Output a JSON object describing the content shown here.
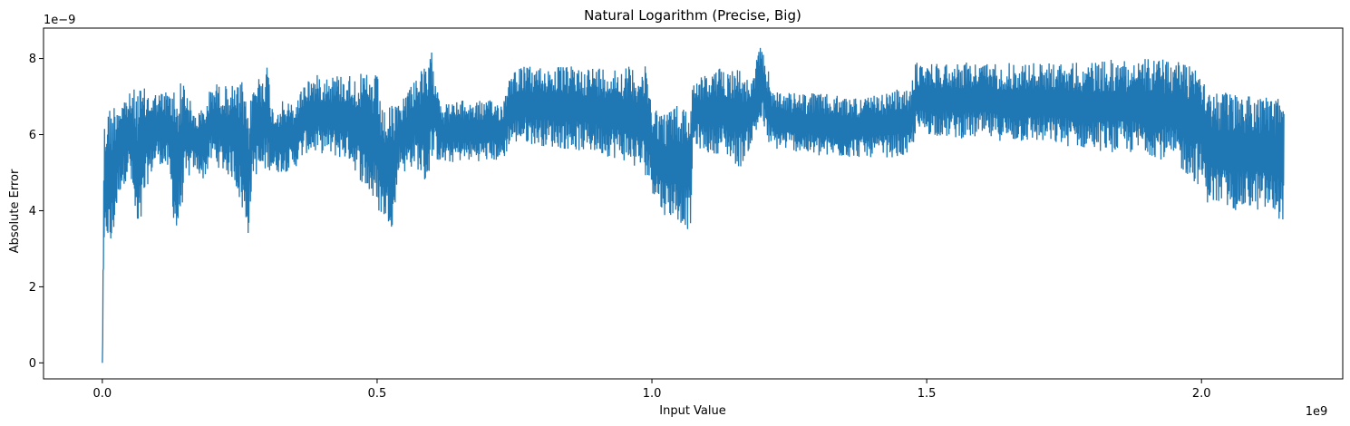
{
  "chart_data": {
    "type": "line",
    "title": "Natural Logarithm (Precise, Big)",
    "xlabel": "Input Value",
    "ylabel": "Absolute Error",
    "x_offset_label": "1e9",
    "y_offset_label": "1e−9",
    "xlim": [
      -0.107,
      2.257
    ],
    "ylim": [
      -0.42,
      8.8
    ],
    "x_ticks": [
      0.0,
      0.5,
      1.0,
      1.5,
      2.0
    ],
    "x_tick_labels": [
      "0.0",
      "0.5",
      "1.0",
      "1.5",
      "2.0"
    ],
    "y_ticks": [
      0,
      2,
      4,
      6,
      8
    ],
    "y_tick_labels": [
      "0",
      "2",
      "4",
      "6",
      "8"
    ],
    "grid": false,
    "legend": "none",
    "series_color": "#1f77b4",
    "series": [
      {
        "x": [
          0.0,
          0.003,
          0.008,
          0.015,
          0.03,
          0.05,
          0.065,
          0.08,
          0.1,
          0.12,
          0.135,
          0.15,
          0.165,
          0.185,
          0.2,
          0.22,
          0.24,
          0.255,
          0.265,
          0.275,
          0.29,
          0.3,
          0.31,
          0.33,
          0.35,
          0.37,
          0.4,
          0.45,
          0.5,
          0.51,
          0.52,
          0.53,
          0.54,
          0.55,
          0.57,
          0.59,
          0.6,
          0.62,
          0.65,
          0.7,
          0.73,
          0.74,
          0.76,
          0.8,
          0.85,
          0.9,
          0.95,
          0.99,
          1.0,
          1.02,
          1.04,
          1.06,
          1.07,
          1.075,
          1.08,
          1.1,
          1.13,
          1.16,
          1.18,
          1.19,
          1.2,
          1.21,
          1.22,
          1.25,
          1.3,
          1.35,
          1.4,
          1.45,
          1.47,
          1.48,
          1.5,
          1.55,
          1.6,
          1.65,
          1.7,
          1.75,
          1.8,
          1.85,
          1.9,
          1.95,
          2.0,
          2.01,
          2.02,
          2.05,
          2.08,
          2.1,
          2.13,
          2.15
        ],
        "upper": [
          0.0,
          6.3,
          6.7,
          6.8,
          7.0,
          7.1,
          7.3,
          7.2,
          7.1,
          7.2,
          7.3,
          7.5,
          6.6,
          6.7,
          7.4,
          7.3,
          7.3,
          7.4,
          6.5,
          7.4,
          7.7,
          7.9,
          6.7,
          6.9,
          6.8,
          7.5,
          7.6,
          7.6,
          7.6,
          6.6,
          6.7,
          6.8,
          6.8,
          7.1,
          7.6,
          7.8,
          8.2,
          6.8,
          6.9,
          6.9,
          6.9,
          7.7,
          7.8,
          7.8,
          7.8,
          7.8,
          7.8,
          7.8,
          6.9,
          6.6,
          6.8,
          6.8,
          6.8,
          7.5,
          7.5,
          7.6,
          7.8,
          7.8,
          7.3,
          8.0,
          8.4,
          7.8,
          7.2,
          7.1,
          7.1,
          7.0,
          7.0,
          7.2,
          7.2,
          7.9,
          7.9,
          7.9,
          7.9,
          7.9,
          7.9,
          7.9,
          7.9,
          8.0,
          8.0,
          8.0,
          8.0,
          7.4,
          7.1,
          7.1,
          7.1,
          7.1,
          7.0,
          7.0
        ],
        "lower": [
          0.0,
          2.3,
          3.3,
          2.7,
          4.4,
          5.0,
          2.9,
          4.6,
          5.3,
          5.0,
          3.1,
          4.6,
          5.1,
          4.8,
          5.3,
          5.0,
          4.8,
          3.9,
          3.3,
          5.0,
          4.8,
          5.1,
          5.0,
          5.0,
          5.1,
          5.5,
          5.5,
          5.3,
          4.0,
          3.8,
          3.7,
          3.5,
          5.2,
          5.0,
          5.2,
          4.6,
          5.4,
          5.2,
          5.3,
          5.3,
          5.3,
          5.7,
          5.8,
          5.7,
          5.6,
          5.5,
          5.3,
          4.9,
          4.5,
          3.9,
          3.8,
          3.6,
          3.4,
          5.6,
          5.7,
          5.5,
          5.5,
          5.1,
          5.7,
          6.0,
          6.3,
          5.8,
          5.6,
          5.6,
          5.4,
          5.4,
          5.4,
          5.4,
          5.4,
          6.0,
          6.0,
          5.9,
          5.9,
          5.8,
          5.8,
          5.7,
          5.6,
          5.5,
          5.5,
          5.2,
          4.6,
          4.2,
          4.2,
          4.0,
          4.0,
          4.0,
          3.9,
          3.7
        ]
      }
    ]
  }
}
